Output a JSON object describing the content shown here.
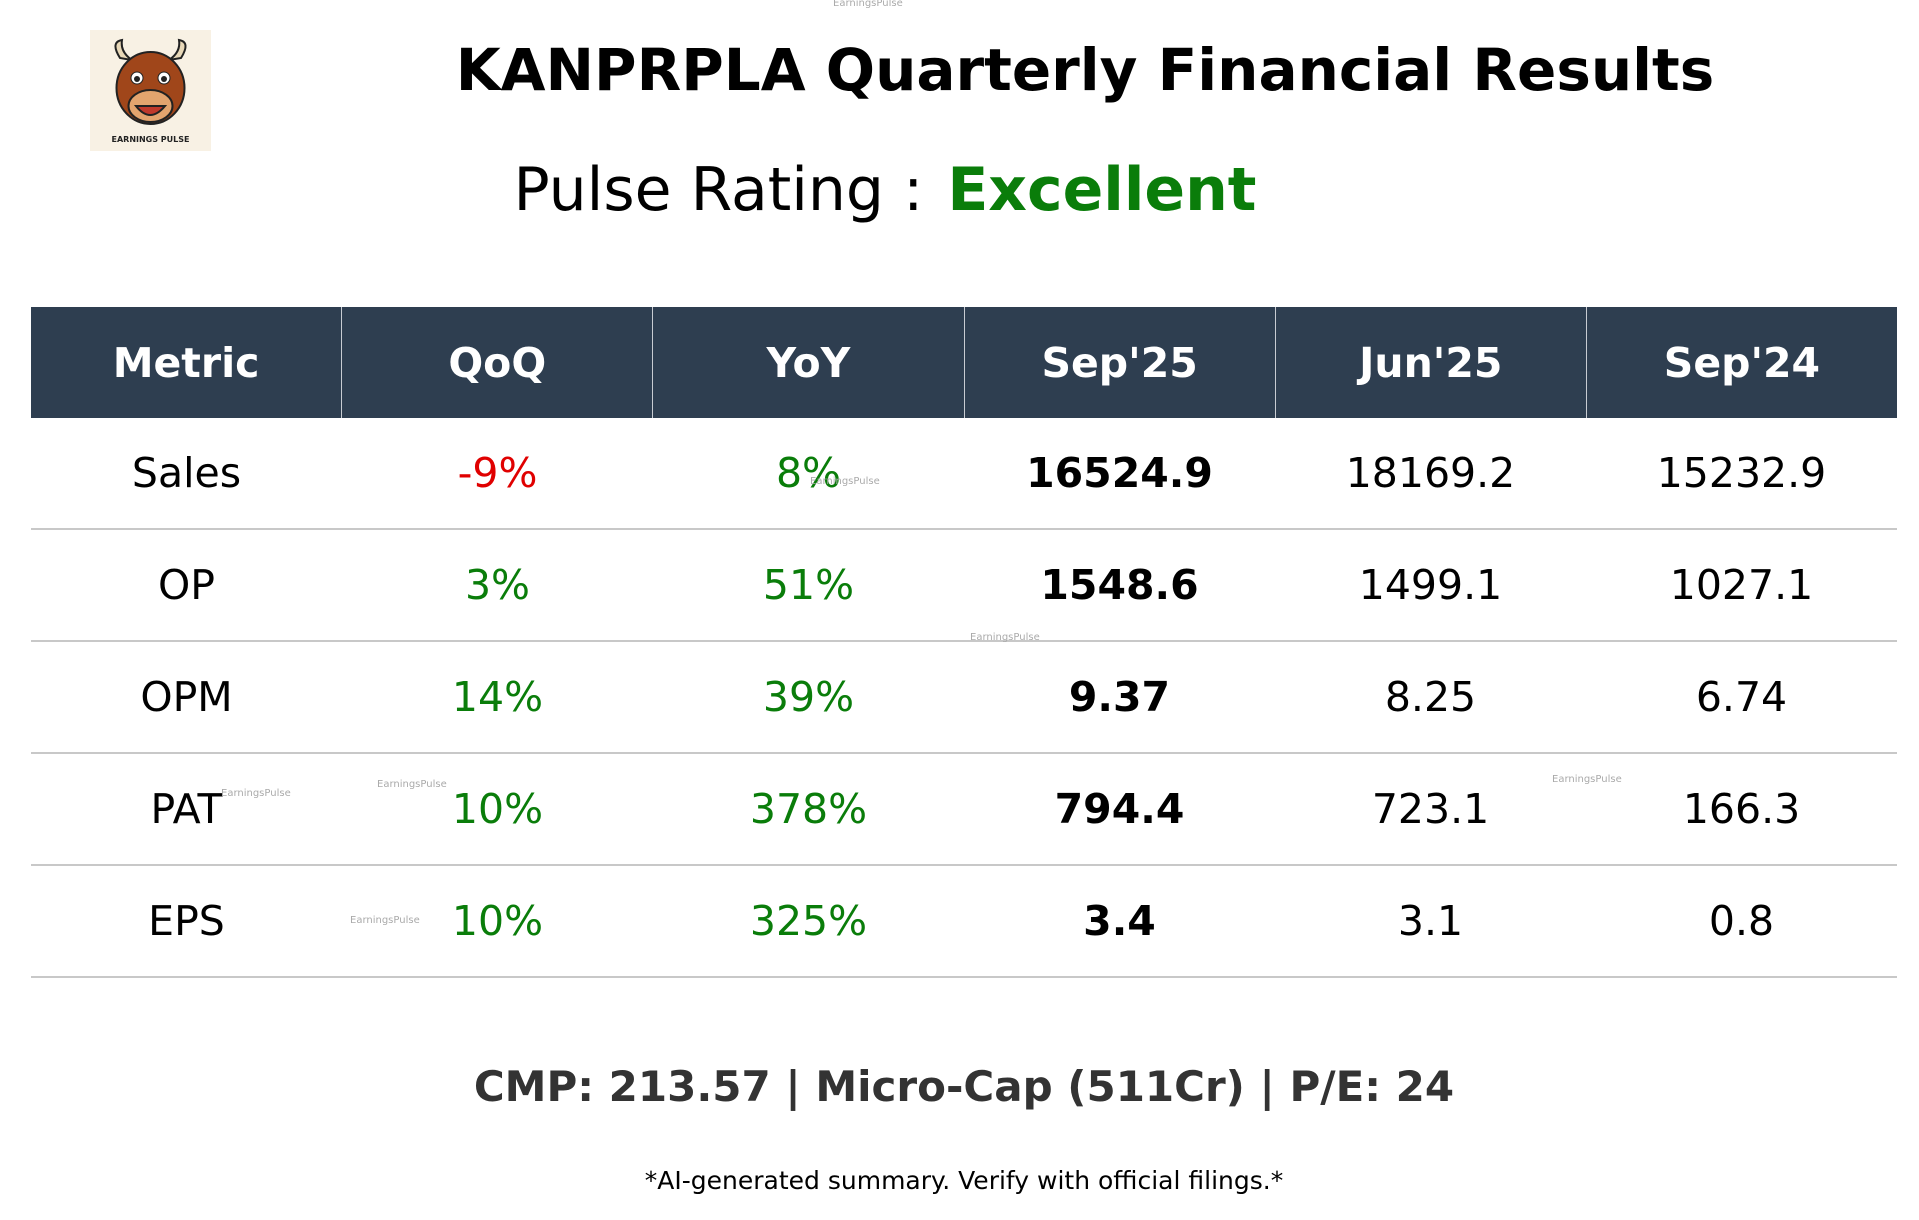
{
  "header": {
    "title": "KANPRPLA Quarterly Financial Results",
    "rating_label": "Pulse Rating :",
    "rating_value": "Excellent"
  },
  "logo": {
    "label": "EARNINGS PULSE"
  },
  "watermark": "EarningsPulse",
  "table": {
    "columns": [
      "Metric",
      "QoQ",
      "YoY",
      "Sep'25",
      "Jun'25",
      "Sep'24"
    ],
    "rows": [
      [
        "Sales",
        "-9%",
        "8%",
        "16524.9",
        "18169.2",
        "15232.9"
      ],
      [
        "OP",
        "3%",
        "51%",
        "1548.6",
        "1499.1",
        "1027.1"
      ],
      [
        "OPM",
        "14%",
        "39%",
        "9.37",
        "8.25",
        "6.74"
      ],
      [
        "PAT",
        "10%",
        "378%",
        "794.4",
        "723.1",
        "166.3"
      ],
      [
        "EPS",
        "10%",
        "325%",
        "3.4",
        "3.1",
        "0.8"
      ]
    ]
  },
  "footer": {
    "summary": "CMP: 213.57 | Micro-Cap (511Cr) | P/E: 24",
    "disclaimer": "*AI-generated summary. Verify with official filings.*"
  }
}
